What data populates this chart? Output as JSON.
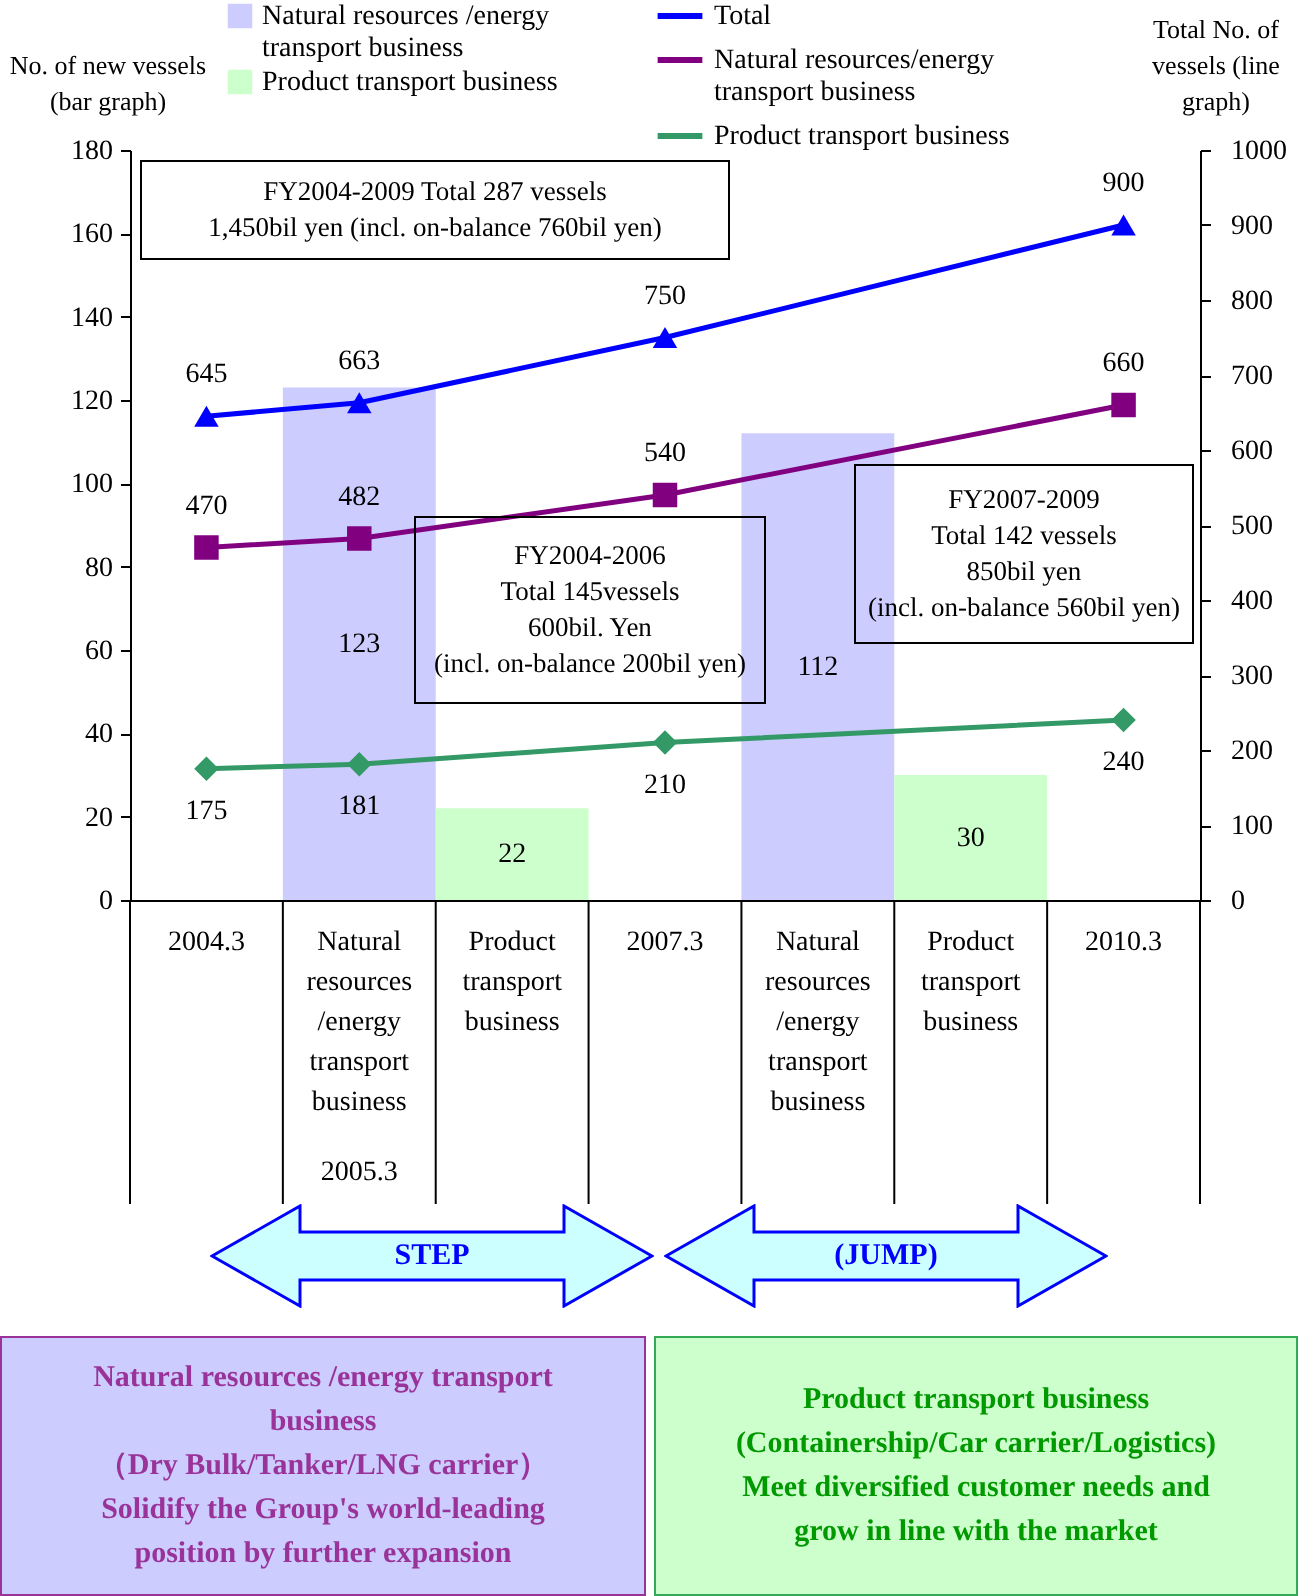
{
  "chart_data": {
    "type": "bar",
    "ylabel": "No. of new vessels (bar graph)",
    "y2label": "Total No. of vessels (line graph)",
    "categories": [
      "2004.3",
      "Natural resources /energy transport business",
      "Product transport business",
      "2007.3",
      "Natural resources /energy transport business",
      "Product transport business",
      "2010.3"
    ],
    "series": [
      {
        "name": "Natural resources /energy transport business",
        "color": "#ccccff",
        "values": [
          null,
          123,
          null,
          null,
          112,
          null,
          null
        ]
      },
      {
        "name": "Product transport business",
        "color": "#ccffcc",
        "values": [
          null,
          null,
          22,
          null,
          null,
          30,
          null
        ]
      },
      {
        "name": "Total",
        "type": "line",
        "axis": "y2",
        "color": "#0000ff",
        "marker": "triangle",
        "values": [
          645,
          663,
          null,
          750,
          null,
          null,
          900
        ]
      },
      {
        "name": "Natural resources/energy transport business",
        "type": "line",
        "axis": "y2",
        "color": "#800080",
        "marker": "square",
        "values": [
          470,
          482,
          null,
          540,
          null,
          null,
          660
        ]
      },
      {
        "name": "Product transport business",
        "type": "line",
        "axis": "y2",
        "color": "#339966",
        "marker": "diamond",
        "values": [
          175,
          181,
          null,
          210,
          null,
          null,
          240
        ]
      }
    ],
    "ylim": [
      0,
      180
    ],
    "yticks": [
      0,
      20,
      40,
      60,
      80,
      100,
      120,
      140,
      160,
      180
    ],
    "y2lim": [
      0,
      1000
    ],
    "y2ticks": [
      0,
      100,
      200,
      300,
      400,
      500,
      600,
      700,
      800,
      900,
      1000
    ],
    "data_labels": true,
    "grid": false,
    "legend": "top",
    "annotations": [
      "FY2004-2009   Total 287 vessels\n1,450bil yen (incl. on-balance 760bil yen)",
      "FY2004-2006\nTotal 145vessels\n600bil. Yen\n(incl. on-balance 200bil yen)",
      "FY2007-2009\nTotal 142 vessels\n850bil yen\n(incl. on-balance 560bil yen)",
      "2005.3",
      "STEP",
      "(JUMP)",
      "Natural resources /energy transport business\n（Dry Bulk/Tanker/LNG carrier）\nSolidify the Group's world-leading position by further expansion",
      "Product transport business\n(Containership/Car carrier/Logistics)\nMeet diversified customer needs and grow in line with the market"
    ]
  }
}
